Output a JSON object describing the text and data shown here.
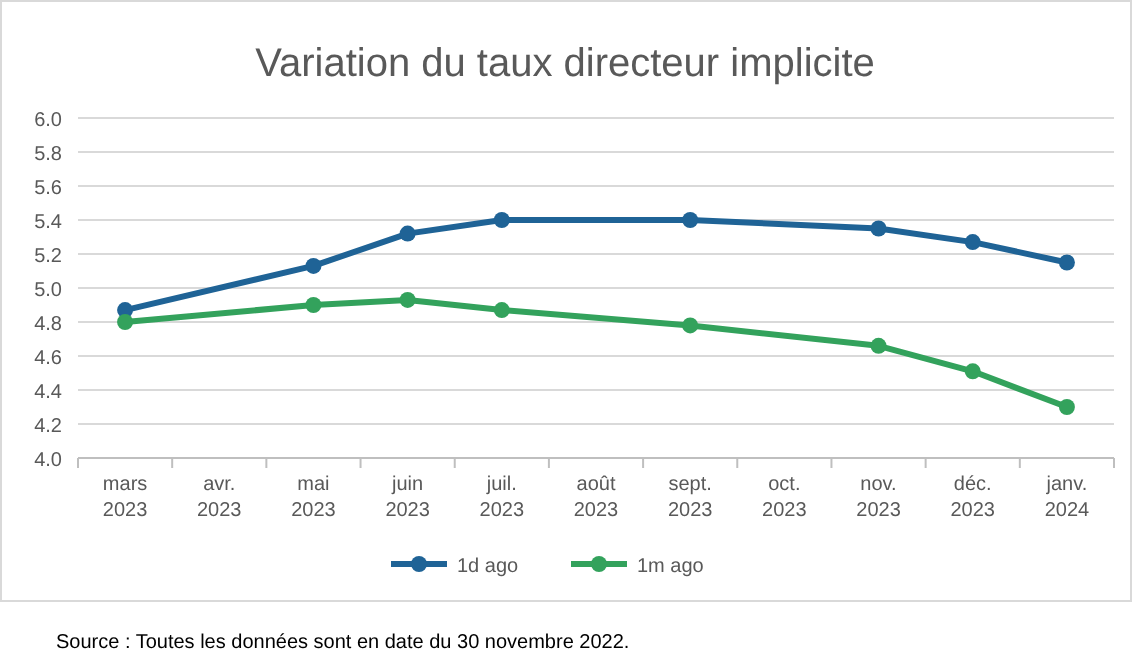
{
  "chart_data": {
    "type": "line",
    "title": "Variation du taux directeur implicite",
    "categories": [
      "mars 2023",
      "avr. 2023",
      "mai 2023",
      "juin 2023",
      "juil. 2023",
      "août 2023",
      "sept. 2023",
      "oct. 2023",
      "nov. 2023",
      "déc. 2023",
      "janv. 2024"
    ],
    "series": [
      {
        "name": "1d ago",
        "color": "#1f6396",
        "values": [
          4.87,
          null,
          5.13,
          5.32,
          5.4,
          null,
          5.4,
          null,
          5.35,
          5.27,
          5.15
        ]
      },
      {
        "name": "1m ago",
        "color": "#33a25c",
        "values": [
          4.8,
          null,
          4.9,
          4.93,
          4.87,
          null,
          4.78,
          null,
          4.66,
          4.51,
          4.3
        ]
      }
    ],
    "ylim": [
      4.0,
      6.0
    ],
    "yticks": [
      {
        "value": 4,
        "label": "4.0"
      },
      4.2,
      4.4,
      4.6,
      4.8,
      {
        "value": 5,
        "label": "5.0"
      },
      5.2,
      5.4,
      5.6,
      5.8,
      {
        "value": 6,
        "label": "6.0"
      }
    ],
    "grid": "y",
    "legend": "bottom",
    "marker": "circle",
    "line_style": "solid",
    "annotations": [
      "Source : Toutes les données sont en date du 30 novembre 2022."
    ]
  }
}
